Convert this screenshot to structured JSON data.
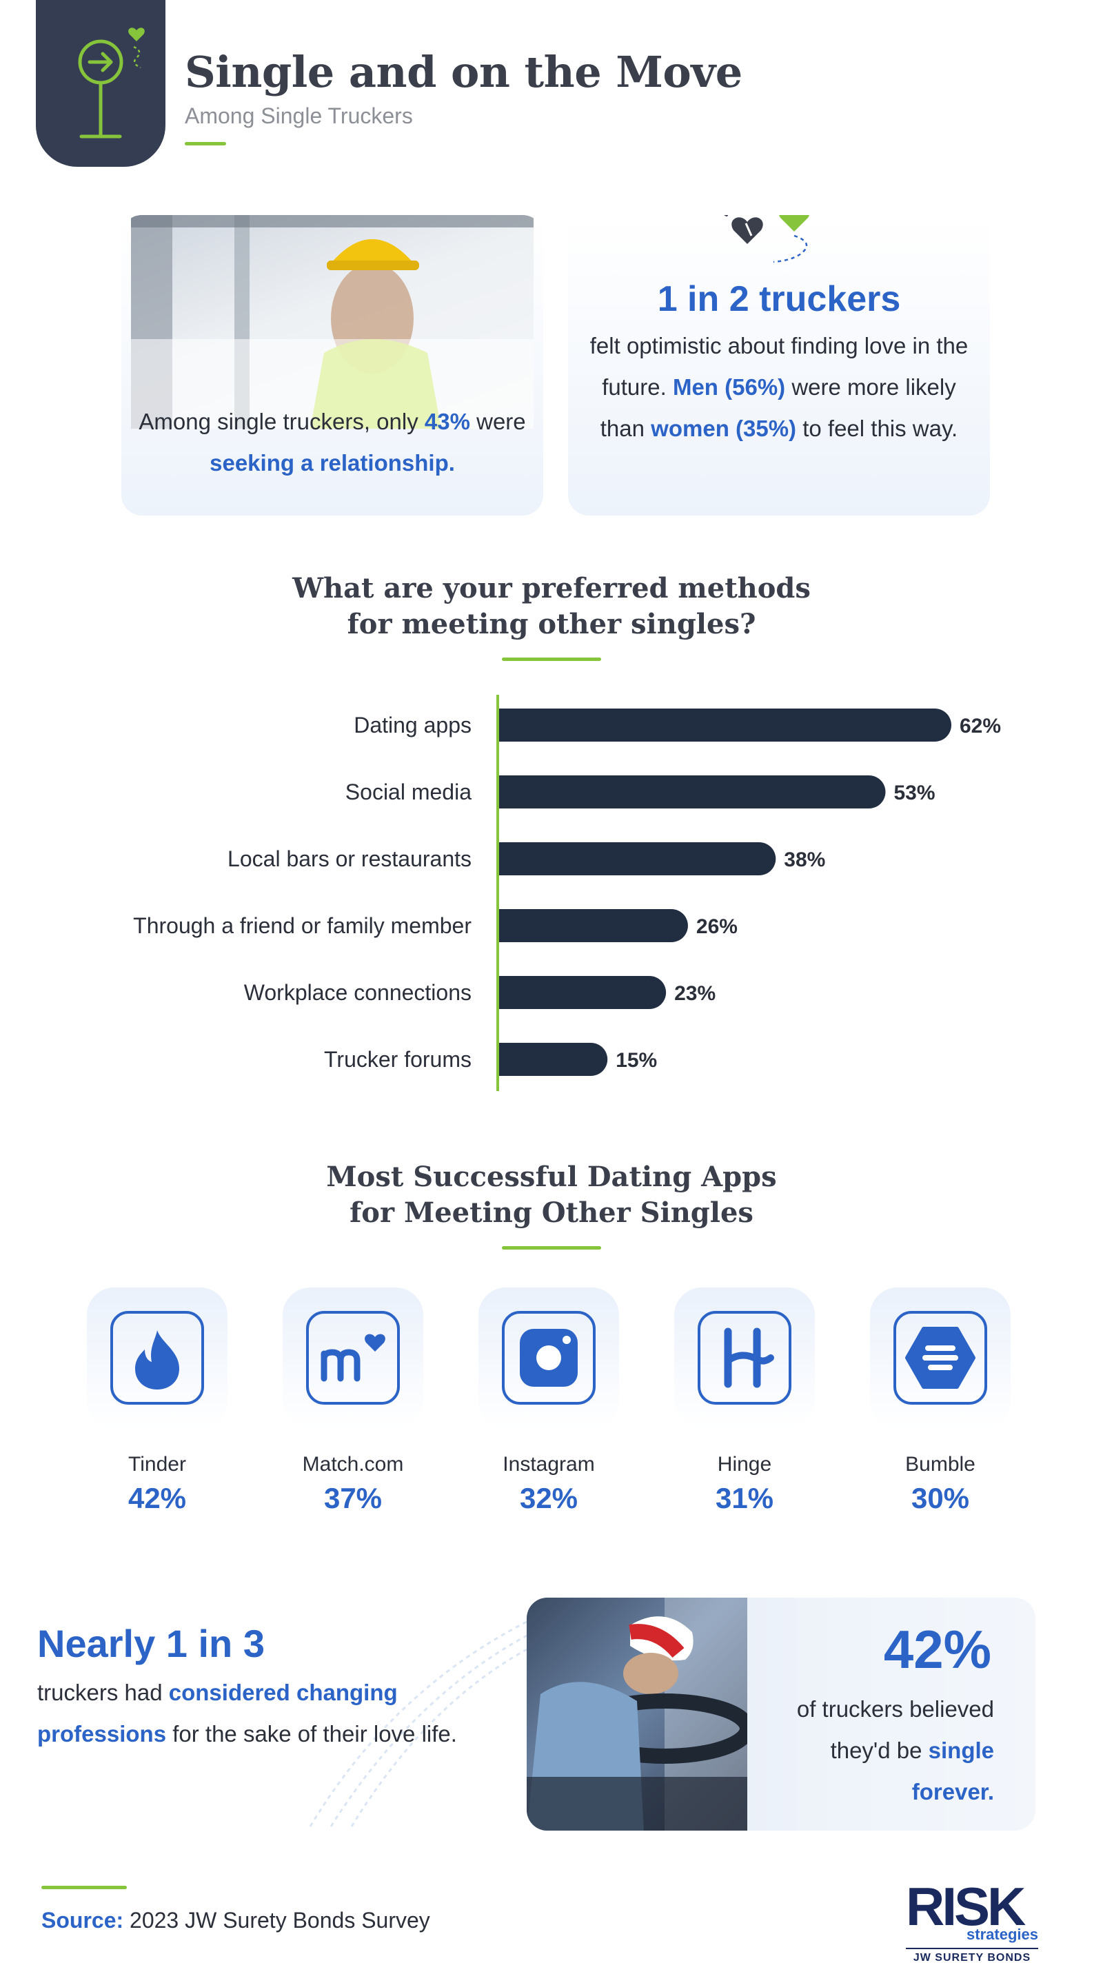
{
  "header": {
    "title": "Single and on the Move",
    "subtitle": "Among Single Truckers"
  },
  "card_left": {
    "text_before": "Among single truckers, only ",
    "pct": "43%",
    "text_mid": " were ",
    "highlight": "seeking a relationship."
  },
  "card_right": {
    "headline": "1 in 2 truckers",
    "body_1": "felt optimistic about finding love in the future. ",
    "men": "Men (56%)",
    "body_2": " were more likely than ",
    "women": "women (35%)",
    "body_3": " to feel this way."
  },
  "methods_section": {
    "title_line1": "What are your preferred methods",
    "title_line2": "for meeting other singles?"
  },
  "chart_data": {
    "type": "bar",
    "orientation": "horizontal",
    "categories": [
      "Dating apps",
      "Social media",
      "Local bars or restaurants",
      "Through a friend or family member",
      "Workplace connections",
      "Trucker forums"
    ],
    "values": [
      62,
      53,
      38,
      26,
      23,
      15
    ],
    "value_labels": [
      "62%",
      "53%",
      "38%",
      "26%",
      "23%",
      "15%"
    ],
    "xlim": [
      0,
      62
    ],
    "colors": {
      "bar": "#212d40",
      "axis": "#86c43b"
    }
  },
  "apps_section": {
    "title_line1": "Most Successful Dating Apps",
    "title_line2": "for Meeting Other Singles",
    "apps": [
      {
        "name": "Tinder",
        "pct": "42%",
        "icon": "tinder-flame-icon"
      },
      {
        "name": "Match.com",
        "pct": "37%",
        "icon": "match-heart-icon"
      },
      {
        "name": "Instagram",
        "pct": "32%",
        "icon": "instagram-camera-icon"
      },
      {
        "name": "Hinge",
        "pct": "31%",
        "icon": "hinge-h-icon"
      },
      {
        "name": "Bumble",
        "pct": "30%",
        "icon": "bumble-hexagon-icon"
      }
    ]
  },
  "stat_left": {
    "headline": "Nearly 1 in 3",
    "text_before": "truckers had ",
    "highlight": "considered changing professions",
    "text_after": " for the sake of their love life."
  },
  "stat_right": {
    "big": "42%",
    "text_before": "of truckers believed they'd be ",
    "highlight": "single forever."
  },
  "footer": {
    "source_label": "Source:",
    "source_text": "2023 JW Surety Bonds Survey",
    "logo_risk": "RISK",
    "logo_strategies": "strategies",
    "logo_jw": "JW SURETY BONDS"
  },
  "colors": {
    "accent_blue": "#2b63c7",
    "accent_green": "#86c43b",
    "navy": "#353d52"
  }
}
